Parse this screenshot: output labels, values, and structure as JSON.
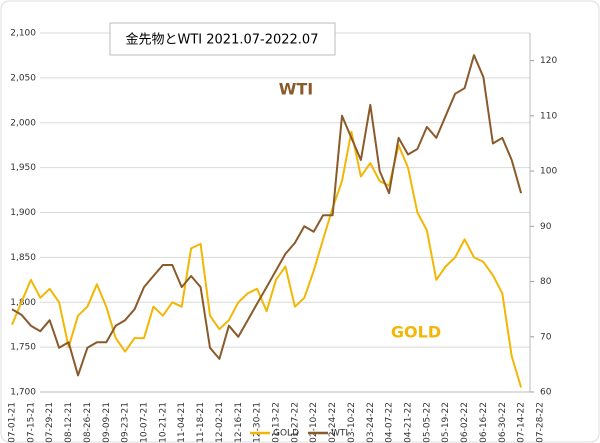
{
  "chart_data": {
    "type": "line",
    "title": "金先物とWTI 2021.07-2022.07",
    "annotations": [
      "WTI",
      "GOLD"
    ],
    "categories": [
      "07-01-21",
      null,
      "07-15-21",
      null,
      "07-29-21",
      null,
      "08-12-21",
      null,
      "08-26-21",
      null,
      "09-09-21",
      null,
      "09-23-21",
      null,
      "10-07-21",
      null,
      "10-21-21",
      null,
      "11-04-21",
      null,
      "11-18-21",
      null,
      "12-02-21",
      null,
      "12-16-21",
      null,
      "12-30-21",
      null,
      "01-13-22",
      null,
      "01-27-22",
      null,
      "02-10-22",
      null,
      "02-24-22",
      null,
      "03-10-22",
      null,
      "03-24-22",
      null,
      "04-07-22",
      null,
      "04-21-22",
      null,
      "05-05-22",
      null,
      "05-19-22",
      null,
      "06-02-22",
      null,
      "06-16-22",
      null,
      "06-30-22",
      null,
      "07-14-22",
      null,
      "07-28-22"
    ],
    "series": [
      {
        "name": "GOLD",
        "color": "#f2b705",
        "values": [
          1775,
          1800,
          1825,
          1805,
          1815,
          1800,
          1750,
          1785,
          1795,
          1820,
          1795,
          1760,
          1745,
          1760,
          1760,
          1795,
          1785,
          1800,
          1795,
          1860,
          1865,
          1785,
          1770,
          1780,
          1800,
          1810,
          1815,
          1790,
          1825,
          1840,
          1795,
          1805,
          1835,
          1870,
          1905,
          1935,
          1990,
          1940,
          1955,
          1935,
          1930,
          1975,
          1950,
          1900,
          1880,
          1825,
          1840,
          1850,
          1870,
          1850,
          1845,
          1830,
          1810,
          1740,
          1705,
          null,
          null
        ]
      },
      {
        "name": "WTI",
        "color": "#8b5a2b",
        "axis": "y2",
        "values": [
          75,
          74,
          72,
          71,
          73,
          68,
          69,
          63,
          68,
          69,
          69,
          72,
          73,
          75,
          79,
          81,
          83,
          83,
          79,
          81,
          79,
          68,
          66,
          72,
          70,
          73,
          76,
          79,
          82,
          85,
          87,
          90,
          89,
          92,
          92,
          110,
          106,
          102,
          112,
          100,
          96,
          106,
          103,
          104,
          108,
          106,
          110,
          114,
          115,
          121,
          117,
          105,
          106,
          102,
          96,
          null,
          null
        ]
      }
    ],
    "ylim": [
      1700,
      2100
    ],
    "yticks": [
      {
        "value": 1700,
        "label": "1,700"
      },
      {
        "value": 1750,
        "label": "1,750"
      },
      {
        "value": 1800,
        "label": "1,800"
      },
      {
        "value": 1850,
        "label": "1,850"
      },
      {
        "value": 1900,
        "label": "1,900"
      },
      {
        "value": 1950,
        "label": "1,950"
      },
      {
        "value": 2000,
        "label": "2,000"
      },
      {
        "value": 2050,
        "label": "2,050"
      },
      {
        "value": 2100,
        "label": "2,100"
      }
    ],
    "y2lim": [
      60,
      125
    ],
    "y2ticks": [
      60,
      70,
      80,
      90,
      100,
      110,
      120
    ],
    "grid": true,
    "legend": "bottom"
  }
}
